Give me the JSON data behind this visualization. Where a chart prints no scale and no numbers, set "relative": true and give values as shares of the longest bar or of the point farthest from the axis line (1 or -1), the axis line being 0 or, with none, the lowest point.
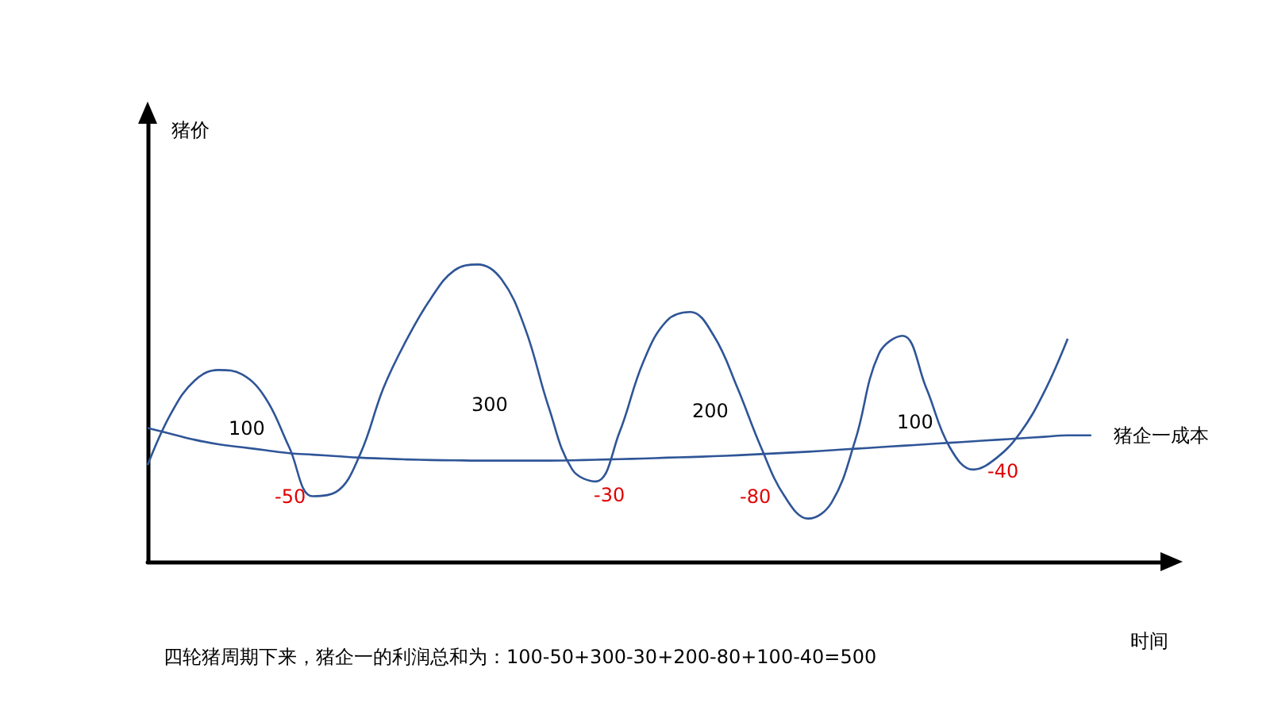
{
  "chart_data": {
    "type": "line",
    "relative": true,
    "xlabel": "时间",
    "grid": false,
    "legend": false,
    "marker": "none",
    "categories": [
      null,
      null,
      null,
      null,
      null,
      null,
      null,
      null,
      null,
      null,
      null,
      null,
      null,
      null,
      null,
      null,
      null,
      null,
      null,
      null,
      null,
      null,
      null,
      null,
      null,
      null,
      null,
      null,
      null,
      null,
      null,
      null,
      null,
      null,
      null,
      null,
      null,
      null,
      null,
      null,
      null,
      null,
      null,
      null
    ],
    "series": [
      {
        "color": "#2f5597",
        "values": [
          0.325,
          0.5,
          0.61,
          0.645,
          0.63,
          0.55,
          0.385,
          0.22,
          0.235,
          0.36,
          0.585,
          0.75,
          0.885,
          0.98,
          1.0,
          0.95,
          0.785,
          0.52,
          0.31,
          0.27,
          0.435,
          0.67,
          0.81,
          0.84,
          0.76,
          0.585,
          0.385,
          0.22,
          0.145,
          0.2,
          0.41,
          0.7,
          0.76,
          0.585,
          0.385,
          0.31,
          0.35,
          0.435,
          0.57,
          0.75,
          null,
          null,
          null,
          null
        ]
      },
      {
        "name": "猪企一成本",
        "color": "#2f5597",
        "values": [
          0.45,
          0.43,
          0.41,
          0.395,
          0.385,
          0.375,
          0.365,
          0.36,
          0.355,
          0.35,
          0.347,
          0.344,
          0.342,
          0.341,
          0.34,
          0.34,
          0.34,
          0.34,
          0.341,
          0.343,
          0.345,
          0.347,
          0.35,
          0.352,
          0.355,
          0.358,
          0.362,
          0.366,
          0.37,
          0.375,
          0.38,
          0.385,
          0.39,
          0.395,
          0.4,
          0.405,
          0.41,
          0.415,
          0.42,
          0.425,
          0.425,
          null,
          null,
          null
        ]
      }
    ],
    "annotations": [
      "猪价",
      "100",
      "-50",
      "300",
      "-30",
      "200",
      "-80",
      "100",
      "-40",
      "四轮猪周期下来，猪企一的利润总和为：100-50+300-30+200-80+100-40=500"
    ]
  }
}
